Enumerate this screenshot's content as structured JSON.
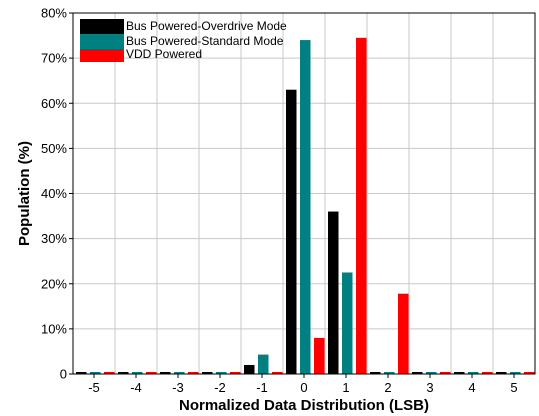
{
  "chart_data": {
    "type": "bar",
    "title": "",
    "xlabel": "Normalized Data Distribution (LSB)",
    "ylabel": "Population (%)",
    "categories": [
      "-5",
      "-4",
      "-3",
      "-2",
      "-1",
      "0",
      "1",
      "2",
      "3",
      "4",
      "5"
    ],
    "ylim": [
      0,
      80
    ],
    "yticks": [
      "0",
      "10%",
      "20%",
      "30%",
      "40%",
      "50%",
      "60%",
      "70%",
      "80%"
    ],
    "ytick_values": [
      0,
      10,
      20,
      30,
      40,
      50,
      60,
      70,
      80
    ],
    "grid": true,
    "legend_position": "top-left",
    "series": [
      {
        "name": "Bus Powered-Overdrive Mode",
        "color": "#000000",
        "values": [
          0,
          0,
          0,
          0,
          2,
          63,
          36,
          0,
          0,
          0,
          0
        ]
      },
      {
        "name": "Bus Powered-Standard Mode",
        "color": "#008080",
        "values": [
          0,
          0,
          0,
          0,
          4.3,
          74,
          22.5,
          0,
          0,
          0,
          0
        ]
      },
      {
        "name": "VDD Powered",
        "color": "#ff0000",
        "values": [
          0,
          0,
          0,
          0,
          0,
          8,
          74.5,
          17.8,
          0,
          0,
          0
        ]
      }
    ]
  }
}
